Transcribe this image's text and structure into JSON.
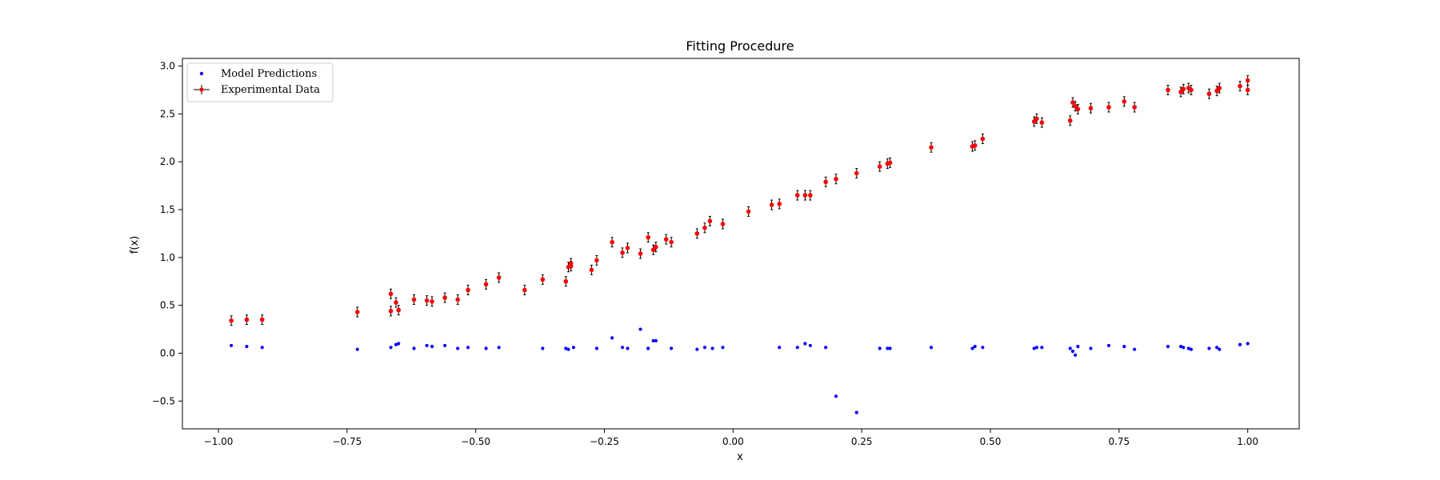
{
  "chart_data": {
    "type": "scatter",
    "title": "Fitting Procedure",
    "xlabel": "x",
    "ylabel": "f(x)",
    "xlim": [
      -1.07,
      1.1
    ],
    "ylim": [
      -0.79,
      3.08
    ],
    "xticks": [
      -1.0,
      -0.75,
      -0.5,
      -0.25,
      0.0,
      0.25,
      0.5,
      0.75,
      1.0
    ],
    "xtick_labels": [
      "−1.00",
      "−0.75",
      "−0.50",
      "−0.25",
      "0.00",
      "0.25",
      "0.50",
      "0.75",
      "1.00"
    ],
    "yticks": [
      -0.5,
      0.0,
      0.5,
      1.0,
      1.5,
      2.0,
      2.5,
      3.0
    ],
    "ytick_labels": [
      "−0.5",
      "0.0",
      "0.5",
      "1.0",
      "1.5",
      "2.0",
      "2.5",
      "3.0"
    ],
    "grid": false,
    "legend_position": "top-left",
    "series": [
      {
        "name": "Model Predictions",
        "color": "#0000ff",
        "marker": "dot",
        "x": [
          -0.975,
          -0.945,
          -0.915,
          -0.73,
          -0.665,
          -0.655,
          -0.65,
          -0.62,
          -0.595,
          -0.585,
          -0.56,
          -0.535,
          -0.515,
          -0.48,
          -0.455,
          -0.37,
          -0.325,
          -0.32,
          -0.31,
          -0.265,
          -0.235,
          -0.215,
          -0.205,
          -0.18,
          -0.165,
          -0.155,
          -0.15,
          -0.12,
          -0.07,
          -0.055,
          -0.04,
          -0.02,
          0.09,
          0.125,
          0.14,
          0.15,
          0.18,
          0.2,
          0.24,
          0.285,
          0.3,
          0.305,
          0.385,
          0.465,
          0.47,
          0.485,
          0.585,
          0.59,
          0.6,
          0.655,
          0.66,
          0.665,
          0.67,
          0.695,
          0.73,
          0.76,
          0.78,
          0.845,
          0.87,
          0.875,
          0.885,
          0.89,
          0.925,
          0.94,
          0.945,
          0.985,
          1.0
        ],
        "y": [
          0.08,
          0.07,
          0.06,
          0.04,
          0.06,
          0.09,
          0.1,
          0.05,
          0.08,
          0.07,
          0.08,
          0.05,
          0.06,
          0.05,
          0.06,
          0.05,
          0.05,
          0.04,
          0.06,
          0.05,
          0.16,
          0.06,
          0.05,
          0.25,
          0.05,
          0.13,
          0.13,
          0.05,
          0.04,
          0.06,
          0.05,
          0.06,
          0.06,
          0.06,
          0.1,
          0.08,
          0.06,
          -0.45,
          -0.62,
          0.05,
          0.05,
          0.05,
          0.06,
          0.05,
          0.07,
          0.06,
          0.05,
          0.06,
          0.06,
          0.05,
          0.02,
          -0.02,
          0.07,
          0.05,
          0.08,
          0.07,
          0.04,
          0.07,
          0.07,
          0.06,
          0.05,
          0.04,
          0.05,
          0.06,
          0.04,
          0.09,
          0.1
        ]
      },
      {
        "name": "Experimental Data",
        "color": "#ff0000",
        "errorbar_color": "#000000",
        "marker": "dot-errorbar",
        "yerr": 0.05,
        "x": [
          -0.975,
          -0.945,
          -0.915,
          -0.73,
          -0.665,
          -0.665,
          -0.655,
          -0.65,
          -0.62,
          -0.595,
          -0.585,
          -0.56,
          -0.535,
          -0.515,
          -0.48,
          -0.455,
          -0.405,
          -0.37,
          -0.325,
          -0.32,
          -0.315,
          -0.315,
          -0.275,
          -0.265,
          -0.235,
          -0.215,
          -0.205,
          -0.18,
          -0.165,
          -0.155,
          -0.15,
          -0.13,
          -0.12,
          -0.07,
          -0.055,
          -0.045,
          -0.02,
          0.03,
          0.075,
          0.09,
          0.125,
          0.14,
          0.15,
          0.18,
          0.2,
          0.24,
          0.285,
          0.3,
          0.305,
          0.385,
          0.465,
          0.47,
          0.485,
          0.585,
          0.59,
          0.6,
          0.655,
          0.66,
          0.665,
          0.67,
          0.695,
          0.73,
          0.76,
          0.78,
          0.845,
          0.87,
          0.875,
          0.885,
          0.89,
          0.925,
          0.94,
          0.945,
          0.985,
          1.0,
          1.0
        ],
        "y": [
          0.34,
          0.35,
          0.35,
          0.43,
          0.44,
          0.62,
          0.53,
          0.45,
          0.56,
          0.55,
          0.54,
          0.58,
          0.56,
          0.66,
          0.72,
          0.79,
          0.66,
          0.77,
          0.75,
          0.9,
          0.91,
          0.94,
          0.87,
          0.97,
          1.16,
          1.05,
          1.1,
          1.04,
          1.21,
          1.08,
          1.11,
          1.19,
          1.16,
          1.25,
          1.31,
          1.38,
          1.35,
          1.48,
          1.55,
          1.56,
          1.65,
          1.65,
          1.65,
          1.79,
          1.82,
          1.88,
          1.95,
          1.98,
          1.99,
          2.15,
          2.16,
          2.17,
          2.24,
          2.42,
          2.45,
          2.41,
          2.43,
          2.62,
          2.58,
          2.55,
          2.56,
          2.57,
          2.63,
          2.57,
          2.75,
          2.73,
          2.76,
          2.77,
          2.75,
          2.71,
          2.74,
          2.77,
          2.79,
          2.75,
          2.85
        ]
      }
    ]
  }
}
